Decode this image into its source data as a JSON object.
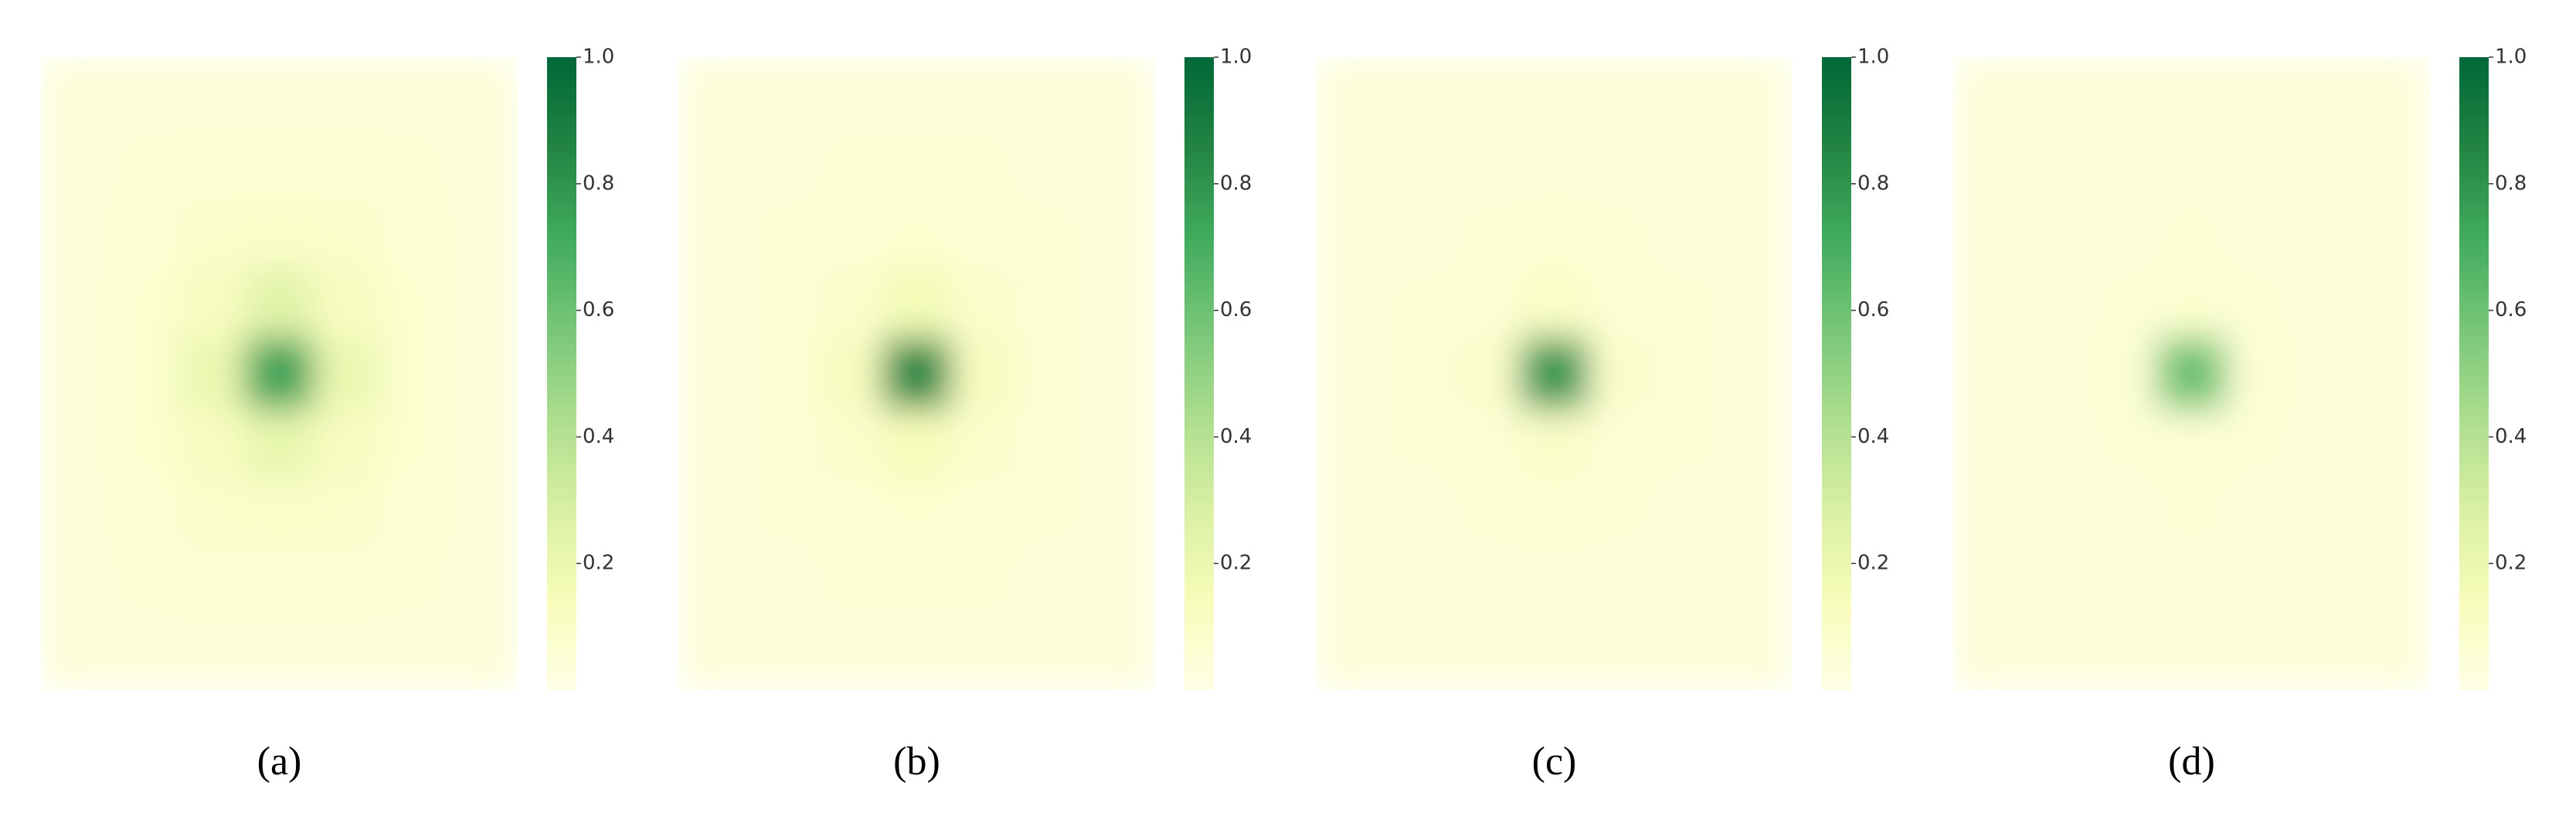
{
  "chart_data": [
    {
      "type": "heatmap",
      "caption": "(a)",
      "clim": [
        0,
        1
      ],
      "colormap": [
        "#ffffe5",
        "#f7fcb9",
        "#d9f0a3",
        "#addd8e",
        "#78c679",
        "#41ab5d",
        "#238443",
        "#006837"
      ],
      "cticks": [
        0.2,
        0.4,
        0.6,
        0.8,
        {
          "value": 1,
          "label": "1.0"
        }
      ],
      "z": [
        [
          0.04,
          0.04,
          0.04,
          0.04,
          0.04,
          0.04,
          0.04
        ],
        [
          0.04,
          0.05,
          0.06,
          0.06,
          0.06,
          0.05,
          0.04
        ],
        [
          0.04,
          0.06,
          0.08,
          0.09,
          0.08,
          0.06,
          0.04
        ],
        [
          0.04,
          0.07,
          0.12,
          0.25,
          0.12,
          0.07,
          0.04
        ],
        [
          0.04,
          0.07,
          0.2,
          0.75,
          0.2,
          0.07,
          0.04
        ],
        [
          0.04,
          0.07,
          0.12,
          0.22,
          0.12,
          0.07,
          0.04
        ],
        [
          0.04,
          0.06,
          0.08,
          0.09,
          0.08,
          0.06,
          0.04
        ],
        [
          0.04,
          0.05,
          0.06,
          0.06,
          0.06,
          0.05,
          0.04
        ],
        [
          0.04,
          0.04,
          0.04,
          0.04,
          0.04,
          0.04,
          0.04
        ]
      ]
    },
    {
      "type": "heatmap",
      "caption": "(b)",
      "clim": [
        0,
        1
      ],
      "colormap": [
        "#ffffe5",
        "#f7fcb9",
        "#d9f0a3",
        "#addd8e",
        "#78c679",
        "#41ab5d",
        "#238443",
        "#006837"
      ],
      "cticks": [
        0.2,
        0.4,
        0.6,
        0.8,
        {
          "value": 1,
          "label": "1.0"
        }
      ],
      "z": [
        [
          0.04,
          0.04,
          0.04,
          0.04,
          0.04,
          0.04,
          0.04
        ],
        [
          0.04,
          0.04,
          0.05,
          0.05,
          0.05,
          0.04,
          0.04
        ],
        [
          0.04,
          0.05,
          0.06,
          0.07,
          0.06,
          0.05,
          0.04
        ],
        [
          0.04,
          0.05,
          0.08,
          0.16,
          0.08,
          0.05,
          0.04
        ],
        [
          0.04,
          0.05,
          0.12,
          0.85,
          0.12,
          0.05,
          0.04
        ],
        [
          0.04,
          0.05,
          0.08,
          0.14,
          0.08,
          0.05,
          0.04
        ],
        [
          0.04,
          0.05,
          0.06,
          0.07,
          0.06,
          0.05,
          0.04
        ],
        [
          0.04,
          0.04,
          0.05,
          0.05,
          0.05,
          0.04,
          0.04
        ],
        [
          0.04,
          0.04,
          0.04,
          0.04,
          0.04,
          0.04,
          0.04
        ]
      ]
    },
    {
      "type": "heatmap",
      "caption": "(c)",
      "clim": [
        0,
        1
      ],
      "colormap": [
        "#ffffe5",
        "#f7fcb9",
        "#d9f0a3",
        "#addd8e",
        "#78c679",
        "#41ab5d",
        "#238443",
        "#006837"
      ],
      "cticks": [
        0.2,
        0.4,
        0.6,
        0.8,
        {
          "value": 1,
          "label": "1.0"
        }
      ],
      "z": [
        [
          0.04,
          0.04,
          0.04,
          0.04,
          0.04,
          0.04,
          0.04
        ],
        [
          0.04,
          0.04,
          0.04,
          0.04,
          0.04,
          0.04,
          0.04
        ],
        [
          0.04,
          0.04,
          0.05,
          0.06,
          0.05,
          0.04,
          0.04
        ],
        [
          0.04,
          0.05,
          0.06,
          0.1,
          0.06,
          0.05,
          0.04
        ],
        [
          0.04,
          0.05,
          0.08,
          0.8,
          0.08,
          0.05,
          0.04
        ],
        [
          0.04,
          0.05,
          0.06,
          0.09,
          0.06,
          0.05,
          0.04
        ],
        [
          0.04,
          0.04,
          0.05,
          0.06,
          0.05,
          0.04,
          0.04
        ],
        [
          0.04,
          0.04,
          0.04,
          0.04,
          0.04,
          0.04,
          0.04
        ],
        [
          0.04,
          0.04,
          0.04,
          0.04,
          0.04,
          0.04,
          0.04
        ]
      ]
    },
    {
      "type": "heatmap",
      "caption": "(d)",
      "clim": [
        0,
        1
      ],
      "colormap": [
        "#ffffe5",
        "#f7fcb9",
        "#d9f0a3",
        "#addd8e",
        "#78c679",
        "#41ab5d",
        "#238443",
        "#006837"
      ],
      "cticks": [
        0.2,
        0.4,
        0.6,
        0.8,
        {
          "value": 1,
          "label": "1.0"
        }
      ],
      "z": [
        [
          0.04,
          0.04,
          0.04,
          0.04,
          0.04,
          0.04,
          0.04
        ],
        [
          0.04,
          0.04,
          0.04,
          0.04,
          0.04,
          0.04,
          0.04
        ],
        [
          0.04,
          0.04,
          0.04,
          0.05,
          0.04,
          0.04,
          0.04
        ],
        [
          0.04,
          0.04,
          0.05,
          0.07,
          0.05,
          0.04,
          0.04
        ],
        [
          0.04,
          0.04,
          0.06,
          0.6,
          0.06,
          0.04,
          0.04
        ],
        [
          0.04,
          0.04,
          0.05,
          0.06,
          0.05,
          0.04,
          0.04
        ],
        [
          0.04,
          0.04,
          0.04,
          0.05,
          0.04,
          0.04,
          0.04
        ],
        [
          0.04,
          0.04,
          0.04,
          0.04,
          0.04,
          0.04,
          0.04
        ],
        [
          0.04,
          0.04,
          0.04,
          0.04,
          0.04,
          0.04,
          0.04
        ]
      ]
    }
  ]
}
